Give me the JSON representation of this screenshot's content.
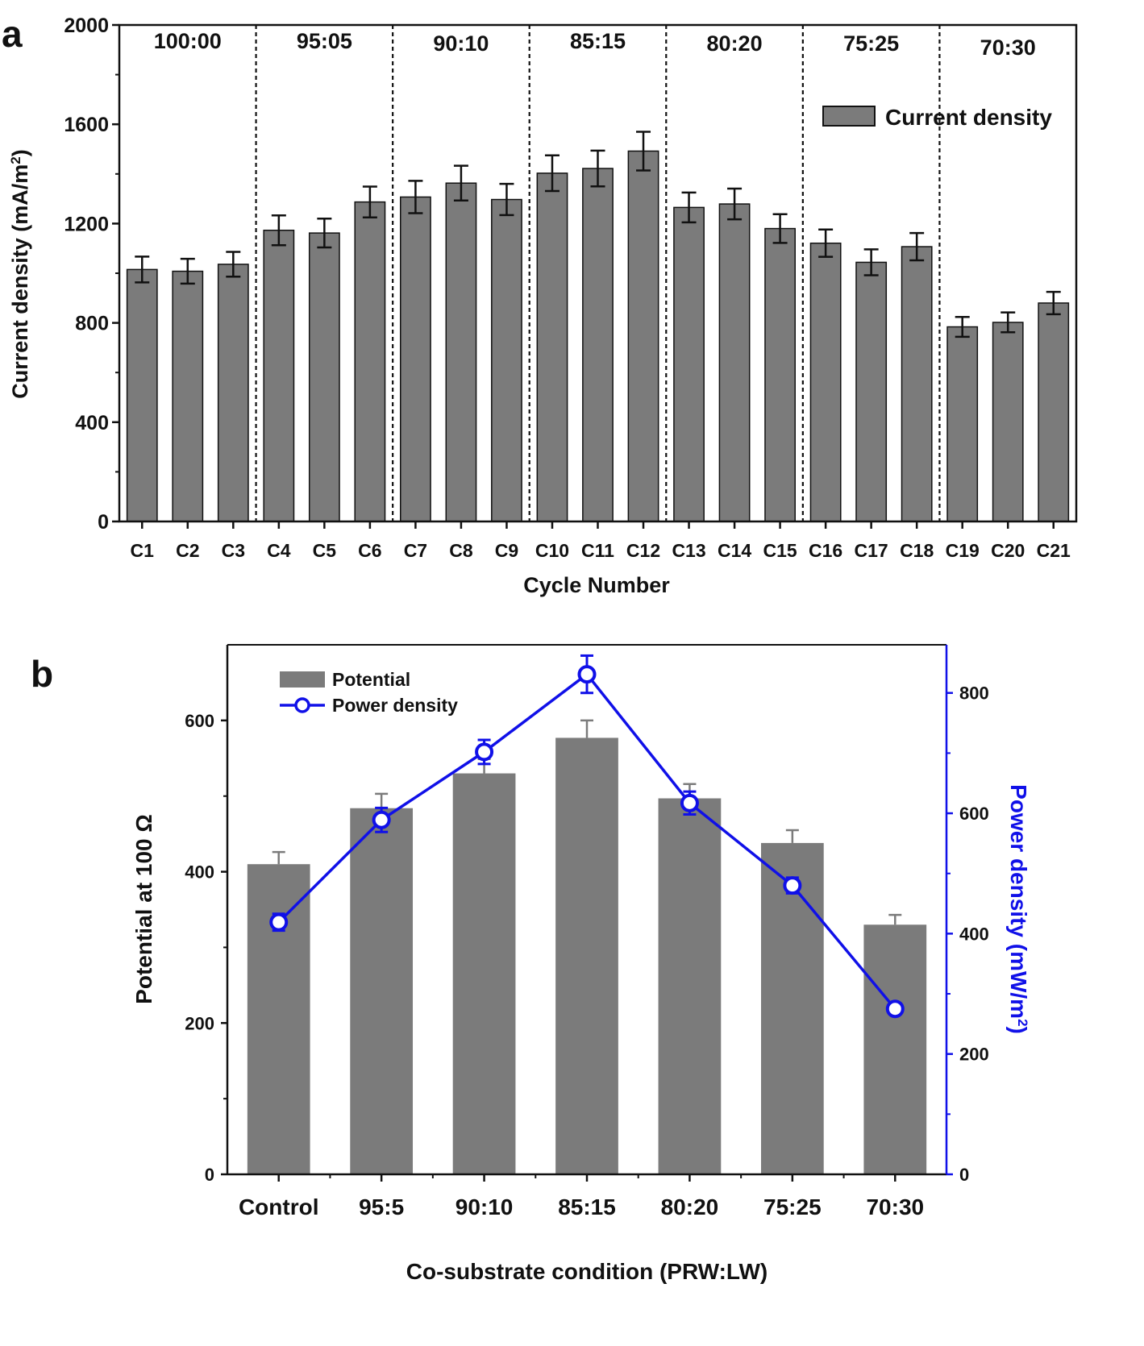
{
  "chart_data": [
    {
      "type": "bar",
      "panel_label": "a",
      "xlabel": "Cycle Number",
      "ylabel": "Current density (mA/m",
      "ylabel_sup": "2",
      "ylabel_end": ")",
      "ylim": [
        0,
        2000
      ],
      "yticks": [
        0,
        400,
        800,
        1200,
        1600,
        2000
      ],
      "categories": [
        "C1",
        "C2",
        "C3",
        "C4",
        "C5",
        "C6",
        "C7",
        "C8",
        "C9",
        "C10",
        "C11",
        "C12",
        "C13",
        "C14",
        "C15",
        "C16",
        "C17",
        "C18",
        "C19",
        "C20",
        "C21"
      ],
      "series": [
        {
          "name": "Current density",
          "values": [
            1015,
            1008,
            1036,
            1173,
            1162,
            1287,
            1307,
            1363,
            1297,
            1403,
            1422,
            1492,
            1265,
            1279,
            1180,
            1121,
            1044,
            1107,
            784,
            802,
            880
          ],
          "errors": [
            52,
            50,
            50,
            60,
            58,
            62,
            65,
            70,
            63,
            72,
            72,
            78,
            60,
            62,
            58,
            55,
            52,
            55,
            40,
            40,
            45
          ],
          "color": "#7b7b7b"
        }
      ],
      "groups": [
        {
          "label": "100:00",
          "start": 0,
          "end": 2
        },
        {
          "label": "95:05",
          "start": 3,
          "end": 5
        },
        {
          "label": "90:10",
          "start": 6,
          "end": 8
        },
        {
          "label": "85:15",
          "start": 9,
          "end": 11
        },
        {
          "label": "80:20",
          "start": 12,
          "end": 14
        },
        {
          "label": "75:25",
          "start": 15,
          "end": 17
        },
        {
          "label": "70:30",
          "start": 18,
          "end": 20
        }
      ],
      "legend": {
        "label": "Current density",
        "position": "top-right"
      }
    },
    {
      "type": "bar+line",
      "panel_label": "b",
      "xlabel": "Co-substrate condition (PRW:LW)",
      "ylabel_left": "Potential at 100 Ω",
      "ylabel_right": "Power density (mW/m",
      "ylabel_right_sup": "2",
      "ylabel_right_end": ")",
      "ylim_left": [
        0,
        700
      ],
      "yticks_left": [
        0,
        200,
        400,
        600
      ],
      "ylim_right": [
        0,
        880
      ],
      "yticks_right": [
        0,
        200,
        400,
        600,
        800
      ],
      "categories": [
        "Control",
        "95:5",
        "90:10",
        "85:15",
        "80:20",
        "75:25",
        "70:30"
      ],
      "series": [
        {
          "name": "Potential",
          "kind": "bar",
          "axis": "left",
          "values": [
            410,
            484,
            530,
            577,
            497,
            438,
            330
          ],
          "errors": [
            16,
            19,
            19,
            23,
            19,
            17,
            13
          ],
          "color": "#7b7b7b"
        },
        {
          "name": "Power density",
          "kind": "line",
          "axis": "right",
          "values": [
            419,
            589,
            702,
            831,
            617,
            480,
            275
          ],
          "errors": [
            14,
            20,
            20,
            31,
            19,
            13,
            7
          ],
          "color": "#1010e8"
        }
      ],
      "legend": {
        "position": "top-left"
      }
    }
  ]
}
